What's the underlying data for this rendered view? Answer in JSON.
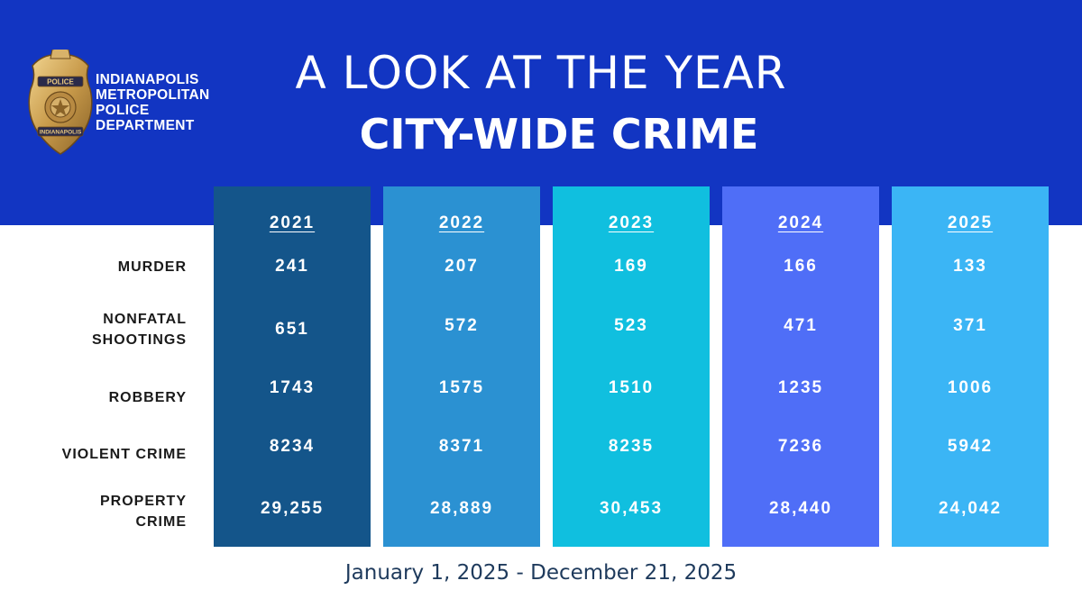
{
  "header": {
    "title": "A LOOK AT THE YEAR",
    "subtitle": "CITY-WIDE CRIME",
    "agency_lines": [
      "INDIANAPOLIS",
      "METROPOLITAN",
      "POLICE",
      "DEPARTMENT"
    ],
    "badge_top_text": "POLICE",
    "badge_bottom_text": "INDIANAPOLIS"
  },
  "colors": {
    "header_band": "#1235c2",
    "col_2021": "#14558a",
    "col_2022": "#2b91d2",
    "col_2023": "#10bfdf",
    "col_2024": "#4f6ef7",
    "col_2025": "#3bb5f5",
    "label_text": "#1a1a1a",
    "footer_text": "#1e3a5c"
  },
  "chart_data": {
    "type": "table",
    "title": "CITY-WIDE CRIME",
    "columns": [
      "2021",
      "2022",
      "2023",
      "2024",
      "2025"
    ],
    "rows": [
      {
        "label": "MURDER",
        "values": [
          "241",
          "207",
          "169",
          "166",
          "133"
        ]
      },
      {
        "label": "NONFATAL SHOOTINGS",
        "label_lines": [
          "NONFATAL",
          "SHOOTINGS"
        ],
        "values": [
          "651",
          "572",
          "523",
          "471",
          "371"
        ]
      },
      {
        "label": "ROBBERY",
        "values": [
          "1743",
          "1575",
          "1510",
          "1235",
          "1006"
        ]
      },
      {
        "label": "VIOLENT CRIME",
        "values": [
          "8234",
          "8371",
          "8235",
          "7236",
          "5942"
        ]
      },
      {
        "label": "PROPERTY CRIME",
        "label_lines": [
          "PROPERTY",
          "CRIME"
        ],
        "values": [
          "29,255",
          "28,889",
          "30,453",
          "28,440",
          "24,042"
        ]
      }
    ]
  },
  "footer": {
    "date_range": "January 1, 2025 - December 21, 2025"
  }
}
